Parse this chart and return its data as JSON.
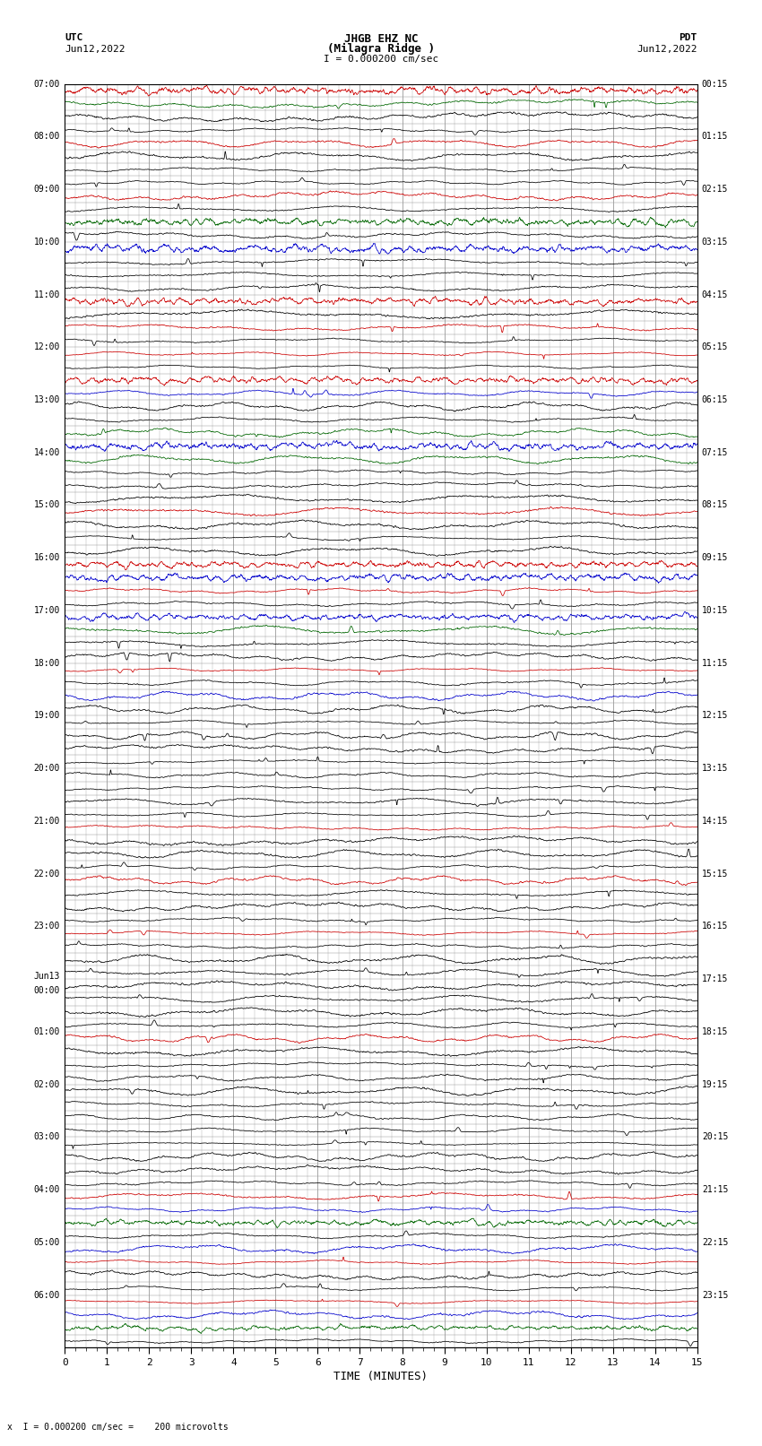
{
  "title_line1": "JHGB EHZ NC",
  "title_line2": "(Milagra Ridge )",
  "scale_text": "I = 0.000200 cm/sec",
  "left_header1": "UTC",
  "left_header2": "Jun12,2022",
  "right_header1": "PDT",
  "right_header2": "Jun12,2022",
  "footer_text": "x  I = 0.000200 cm/sec =    200 microvolts",
  "xlabel": "TIME (MINUTES)",
  "xmin": 0,
  "xmax": 15,
  "xticks": [
    0,
    1,
    2,
    3,
    4,
    5,
    6,
    7,
    8,
    9,
    10,
    11,
    12,
    13,
    14,
    15
  ],
  "background_color": "#ffffff",
  "grid_color": "#999999",
  "num_rows": 96,
  "utc_labels": {
    "0": "07:00",
    "4": "08:00",
    "8": "09:00",
    "12": "10:00",
    "16": "11:00",
    "20": "12:00",
    "24": "13:00",
    "28": "14:00",
    "32": "15:00",
    "36": "16:00",
    "40": "17:00",
    "44": "18:00",
    "48": "19:00",
    "52": "20:00",
    "56": "21:00",
    "60": "22:00",
    "64": "23:00",
    "68": "Jun13\n00:00",
    "72": "01:00",
    "76": "02:00",
    "80": "03:00",
    "84": "04:00",
    "88": "05:00",
    "92": "06:00"
  },
  "pdt_labels": {
    "0": "00:15",
    "4": "01:15",
    "8": "02:15",
    "12": "03:15",
    "16": "04:15",
    "20": "05:15",
    "24": "06:15",
    "28": "07:15",
    "32": "08:15",
    "36": "09:15",
    "40": "10:15",
    "44": "11:15",
    "48": "12:15",
    "52": "13:15",
    "56": "14:15",
    "60": "15:15",
    "64": "16:15",
    "68": "17:15",
    "72": "18:15",
    "76": "19:15",
    "80": "20:15",
    "84": "21:15",
    "88": "22:15",
    "92": "23:15"
  },
  "colored_rows": {
    "0": {
      "color": "#cc0000",
      "saturated": true
    },
    "1": {
      "color": "#006600",
      "saturated": false
    },
    "4": {
      "color": "#cc0000",
      "saturated": false
    },
    "8": {
      "color": "#cc0000",
      "saturated": false
    },
    "10": {
      "color": "#006600",
      "saturated": true
    },
    "12": {
      "color": "#0000cc",
      "saturated": true
    },
    "16": {
      "color": "#cc0000",
      "saturated": true
    },
    "18": {
      "color": "#cc0000",
      "saturated": false
    },
    "20": {
      "color": "#cc0000",
      "saturated": false
    },
    "22": {
      "color": "#cc0000",
      "saturated": true
    },
    "23": {
      "color": "#0000cc",
      "saturated": false
    },
    "26": {
      "color": "#006600",
      "saturated": false
    },
    "27": {
      "color": "#0000cc",
      "saturated": true
    },
    "28": {
      "color": "#006600",
      "saturated": false
    },
    "32": {
      "color": "#cc0000",
      "saturated": false
    },
    "36": {
      "color": "#cc0000",
      "saturated": true
    },
    "37": {
      "color": "#0000cc",
      "saturated": true
    },
    "38": {
      "color": "#cc0000",
      "saturated": false
    },
    "40": {
      "color": "#0000cc",
      "saturated": true
    },
    "41": {
      "color": "#006600",
      "saturated": false
    },
    "44": {
      "color": "#cc0000",
      "saturated": false
    },
    "46": {
      "color": "#0000cc",
      "saturated": false
    },
    "56": {
      "color": "#cc0000",
      "saturated": false
    },
    "60": {
      "color": "#cc0000",
      "saturated": false
    },
    "64": {
      "color": "#cc0000",
      "saturated": false
    },
    "72": {
      "color": "#cc0000",
      "saturated": false
    },
    "84": {
      "color": "#cc0000",
      "saturated": false
    },
    "85": {
      "color": "#0000cc",
      "saturated": false
    },
    "86": {
      "color": "#006600",
      "saturated": true
    },
    "88": {
      "color": "#0000cc",
      "saturated": false
    },
    "89": {
      "color": "#cc0000",
      "saturated": false
    },
    "92": {
      "color": "#cc0000",
      "saturated": false
    },
    "93": {
      "color": "#0000cc",
      "saturated": false
    },
    "94": {
      "color": "#006600",
      "saturated": true
    }
  }
}
